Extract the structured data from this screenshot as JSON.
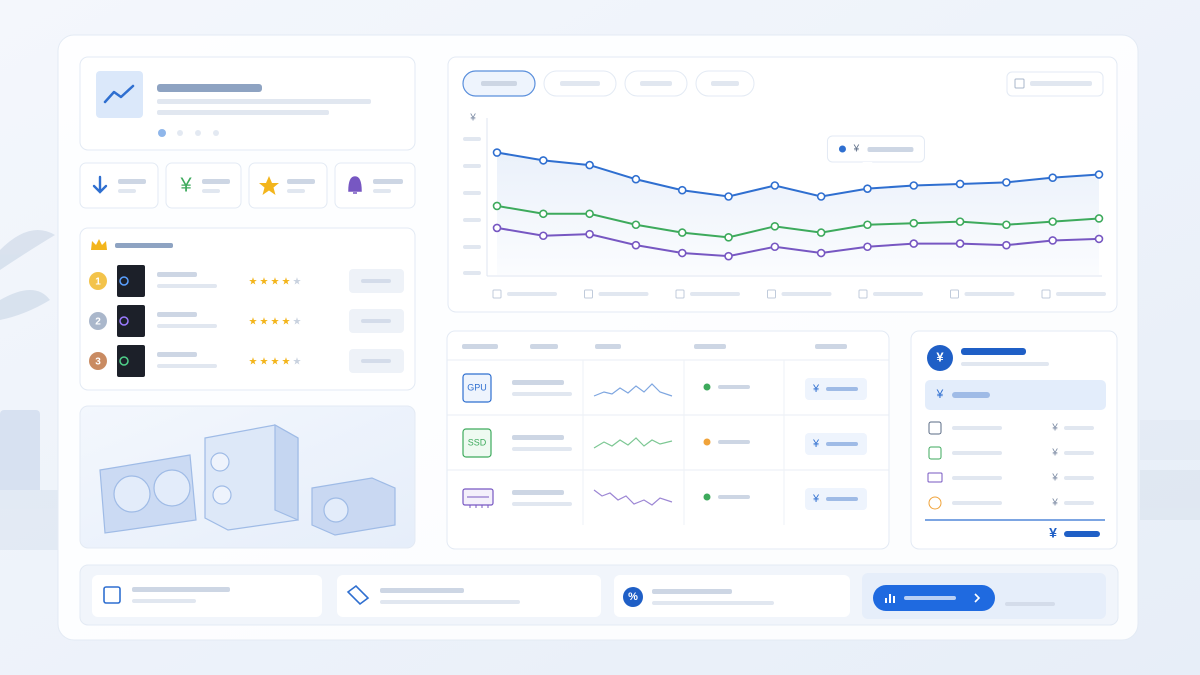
{
  "chart_data": {
    "type": "line",
    "y_unit": "¥",
    "tooltip_unit": "¥",
    "categories": [
      null,
      null,
      null,
      null,
      null,
      null,
      null,
      null,
      null,
      null,
      null,
      null,
      null,
      null
    ],
    "ylim": [
      0,
      100
    ],
    "series": [
      {
        "color": "#2f6fd0",
        "values": [
          78,
          73,
          70,
          61,
          54,
          50,
          57,
          50,
          55,
          57,
          58,
          59,
          62,
          64
        ]
      },
      {
        "color": "#3daa5c",
        "values": [
          44,
          39,
          39,
          32,
          27,
          24,
          31,
          27,
          32,
          33,
          34,
          32,
          34,
          36
        ]
      },
      {
        "color": "#7757c2",
        "values": [
          30,
          25,
          26,
          19,
          14,
          12,
          18,
          14,
          18,
          20,
          20,
          19,
          22,
          23
        ]
      }
    ]
  },
  "stats": {
    "price_icon": "¥"
  },
  "ranking": {
    "ranks": [
      "1",
      "2",
      "3"
    ]
  },
  "components": {
    "rows": [
      {
        "chip": "GPU",
        "price": "¥"
      },
      {
        "chip": "SSD",
        "price": "¥"
      },
      {
        "price": "¥"
      }
    ]
  },
  "summary": {
    "badge": "¥",
    "highlight": "¥",
    "items": [
      "¥",
      "¥",
      "¥",
      "¥"
    ],
    "total": "¥"
  }
}
